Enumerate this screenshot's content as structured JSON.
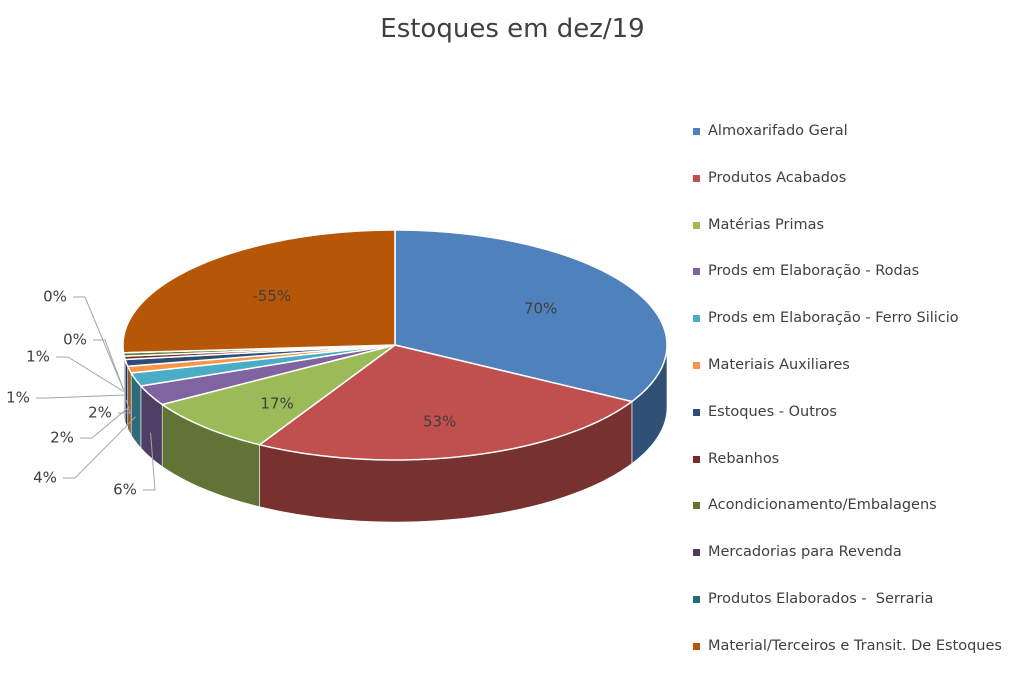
{
  "chart_data": {
    "type": "pie",
    "title": "Estoques em dez/19",
    "categories": [
      "Almoxarifado Geral",
      "Produtos Acabados",
      "Matérias Primas",
      "Prods em Elaboração - Rodas",
      "Prods em Elaboração - Ferro Silicio",
      "Materiais Auxiliares",
      "Estoques - Outros",
      "Rebanhos",
      "Acondicionamento/Embalagens",
      "Mercadorias para Revenda",
      "Produtos Elaborados -  Serraria",
      "Material/Terceiros e Transit. De Estoques"
    ],
    "values": [
      70,
      53,
      17,
      6,
      4,
      2,
      2,
      1,
      1,
      0,
      0,
      -55
    ],
    "value_labels": [
      "70%",
      "53%",
      "17%",
      "6%",
      "4%",
      "2%",
      "2%",
      "1%",
      "1%",
      "0%",
      "0%",
      "-55%"
    ],
    "colors": [
      "#4f81bd",
      "#c0504d",
      "#9bbb59",
      "#8064a2",
      "#4bacc6",
      "#f79646",
      "#2c4d75",
      "#772c2a",
      "#5f7530",
      "#4d3b62",
      "#276a7c",
      "#b65708"
    ],
    "legend": "right"
  }
}
